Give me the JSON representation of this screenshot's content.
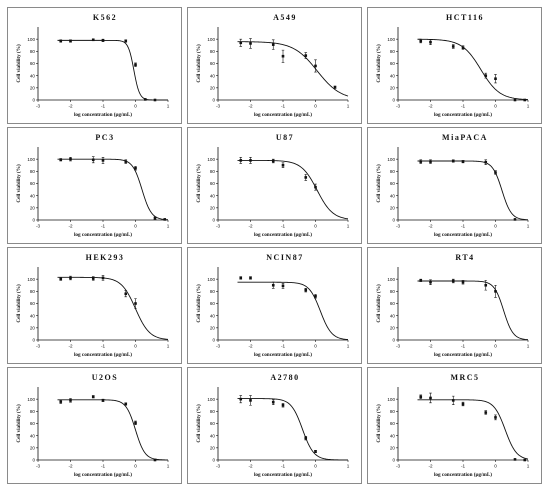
{
  "chart_data": [
    {
      "type": "scatter",
      "title": "K562",
      "xlabel": "log concentration (µg/mL)",
      "ylabel": "Cell viability (%)",
      "xlim": [
        -3,
        1
      ],
      "ylim": [
        0,
        120
      ],
      "xticks": [
        "-3",
        "-2",
        "-1",
        "0",
        "1"
      ],
      "yticks": [
        "0",
        "20",
        "40",
        "60",
        "80",
        "100"
      ],
      "fit": {
        "top": 98,
        "bottom": 0,
        "logIC50": -0.05,
        "hill": -5
      },
      "points": [
        {
          "x": -2.3,
          "y": 97,
          "err": 2
        },
        {
          "x": -2.0,
          "y": 97,
          "err": 2
        },
        {
          "x": -1.3,
          "y": 99,
          "err": 1
        },
        {
          "x": -1.0,
          "y": 98,
          "err": 2
        },
        {
          "x": -0.3,
          "y": 97,
          "err": 2
        },
        {
          "x": 0.0,
          "y": 58,
          "err": 3
        },
        {
          "x": 0.3,
          "y": 1,
          "err": 1
        },
        {
          "x": 0.6,
          "y": 0,
          "err": 0
        }
      ]
    },
    {
      "type": "scatter",
      "title": "A549",
      "xlabel": "log concentration (µg/mL)",
      "ylabel": "Cell viability (%)",
      "xlim": [
        -3,
        1
      ],
      "ylim": [
        0,
        120
      ],
      "xticks": [
        "-3",
        "-2",
        "-1",
        "0",
        "1"
      ],
      "yticks": [
        "0",
        "20",
        "40",
        "60",
        "80",
        "100"
      ],
      "fit": {
        "top": 96,
        "bottom": 0,
        "logIC50": 0.05,
        "hill": -1.2
      },
      "points": [
        {
          "x": -2.3,
          "y": 94,
          "err": 6
        },
        {
          "x": -2.0,
          "y": 93,
          "err": 8
        },
        {
          "x": -1.3,
          "y": 91,
          "err": 8
        },
        {
          "x": -1.0,
          "y": 72,
          "err": 10
        },
        {
          "x": -0.3,
          "y": 73,
          "err": 5
        },
        {
          "x": 0.0,
          "y": 56,
          "err": 10
        },
        {
          "x": 0.6,
          "y": 21,
          "err": 2
        }
      ]
    },
    {
      "type": "scatter",
      "title": "HCT116",
      "xlabel": "log concentration (µg/mL)",
      "ylabel": "Cell viability (%)",
      "xlim": [
        -3,
        1
      ],
      "ylim": [
        0,
        120
      ],
      "xticks": [
        "-3",
        "-2",
        "-1",
        "0",
        "1"
      ],
      "yticks": [
        "0",
        "20",
        "40",
        "60",
        "80",
        "100"
      ],
      "fit": {
        "top": 100,
        "bottom": 0,
        "logIC50": -0.45,
        "hill": -1.5
      },
      "points": [
        {
          "x": -2.3,
          "y": 97,
          "err": 3
        },
        {
          "x": -2.0,
          "y": 95,
          "err": 4
        },
        {
          "x": -1.3,
          "y": 88,
          "err": 3
        },
        {
          "x": -1.0,
          "y": 86,
          "err": 3
        },
        {
          "x": -0.3,
          "y": 40,
          "err": 4
        },
        {
          "x": 0.0,
          "y": 35,
          "err": 7
        },
        {
          "x": 0.6,
          "y": 0,
          "err": 0
        },
        {
          "x": 0.9,
          "y": 0,
          "err": 0
        }
      ]
    },
    {
      "type": "scatter",
      "title": "PC3",
      "xlabel": "log concentration (µg/mL)",
      "ylabel": "Cell viability (%)",
      "xlim": [
        -3,
        1
      ],
      "ylim": [
        0,
        120
      ],
      "xticks": [
        "-3",
        "-2",
        "-1",
        "0",
        "1"
      ],
      "yticks": [
        "0",
        "20",
        "40",
        "60",
        "80",
        "100"
      ],
      "fit": {
        "top": 100,
        "bottom": 0,
        "logIC50": 0.2,
        "hill": -3
      },
      "points": [
        {
          "x": -2.3,
          "y": 99,
          "err": 2
        },
        {
          "x": -2.0,
          "y": 100,
          "err": 3
        },
        {
          "x": -1.3,
          "y": 99,
          "err": 5
        },
        {
          "x": -1.0,
          "y": 98,
          "err": 5
        },
        {
          "x": -0.3,
          "y": 96,
          "err": 3
        },
        {
          "x": 0.0,
          "y": 85,
          "err": 3
        },
        {
          "x": 0.6,
          "y": 3,
          "err": 2
        },
        {
          "x": 0.9,
          "y": 1,
          "err": 0
        }
      ]
    },
    {
      "type": "scatter",
      "title": "U87",
      "xlabel": "log concentration (µg/mL)",
      "ylabel": "Cell viability (%)",
      "xlim": [
        -3,
        1
      ],
      "ylim": [
        0,
        120
      ],
      "xticks": [
        "-3",
        "-2",
        "-1",
        "0",
        "1"
      ],
      "yticks": [
        "0",
        "20",
        "40",
        "60",
        "80",
        "100"
      ],
      "fit": {
        "top": 98,
        "bottom": 0,
        "logIC50": 0.05,
        "hill": -1.8
      },
      "points": [
        {
          "x": -2.3,
          "y": 98,
          "err": 5
        },
        {
          "x": -2.0,
          "y": 98,
          "err": 5
        },
        {
          "x": -1.3,
          "y": 97,
          "err": 3
        },
        {
          "x": -1.0,
          "y": 90,
          "err": 4
        },
        {
          "x": -0.3,
          "y": 70,
          "err": 5
        },
        {
          "x": 0.0,
          "y": 54,
          "err": 5
        }
      ]
    },
    {
      "type": "scatter",
      "title": "MiaPACA",
      "xlabel": "log concentration (µg/mL)",
      "ylabel": "Cell viability (%)",
      "xlim": [
        -3,
        1
      ],
      "ylim": [
        0,
        120
      ],
      "xticks": [
        "-3",
        "-2",
        "-1",
        "0",
        "1"
      ],
      "yticks": [
        "0",
        "20",
        "40",
        "60",
        "80",
        "100"
      ],
      "fit": {
        "top": 97,
        "bottom": 0,
        "logIC50": 0.2,
        "hill": -3
      },
      "points": [
        {
          "x": -2.3,
          "y": 96,
          "err": 3
        },
        {
          "x": -2.0,
          "y": 96,
          "err": 3
        },
        {
          "x": -1.3,
          "y": 97,
          "err": 2
        },
        {
          "x": -1.0,
          "y": 96,
          "err": 2
        },
        {
          "x": -0.3,
          "y": 95,
          "err": 4
        },
        {
          "x": 0.0,
          "y": 78,
          "err": 3
        },
        {
          "x": 0.6,
          "y": 1,
          "err": 0
        }
      ]
    },
    {
      "type": "scatter",
      "title": "HEK293",
      "xlabel": "log concentration (µg/mL)",
      "ylabel": "Cell viability (%)",
      "xlim": [
        -3,
        1
      ],
      "ylim": [
        0,
        120
      ],
      "xticks": [
        "-3",
        "-2",
        "-1",
        "0",
        "1"
      ],
      "yticks": [
        "0",
        "20",
        "40",
        "60",
        "80",
        "100"
      ],
      "fit": {
        "top": 103,
        "bottom": 0,
        "logIC50": 0.0,
        "hill": -2
      },
      "points": [
        {
          "x": -2.3,
          "y": 100,
          "err": 2
        },
        {
          "x": -2.0,
          "y": 102,
          "err": 3
        },
        {
          "x": -1.3,
          "y": 101,
          "err": 3
        },
        {
          "x": -1.0,
          "y": 102,
          "err": 4
        },
        {
          "x": -0.3,
          "y": 76,
          "err": 5
        },
        {
          "x": 0.0,
          "y": 60,
          "err": 8
        }
      ]
    },
    {
      "type": "scatter",
      "title": "NCIN87",
      "xlabel": "log concentration (µg/mL)",
      "ylabel": "Cell viability (%)",
      "xlim": [
        -3,
        1
      ],
      "ylim": [
        0,
        120
      ],
      "xticks": [
        "-3",
        "-2",
        "-1",
        "0",
        "1"
      ],
      "yticks": [
        "0",
        "20",
        "40",
        "60",
        "80",
        "100"
      ],
      "fit": {
        "top": 95,
        "bottom": 0,
        "logIC50": 0.15,
        "hill": -2.5
      },
      "points": [
        {
          "x": -2.3,
          "y": 102,
          "err": 2
        },
        {
          "x": -2.0,
          "y": 102,
          "err": 2
        },
        {
          "x": -1.3,
          "y": 90,
          "err": 5
        },
        {
          "x": -1.0,
          "y": 89,
          "err": 4
        },
        {
          "x": -0.3,
          "y": 82,
          "err": 3
        },
        {
          "x": 0.0,
          "y": 72,
          "err": 3
        }
      ]
    },
    {
      "type": "scatter",
      "title": "RT4",
      "xlabel": "log concentration (µg/mL)",
      "ylabel": "Cell viability (%)",
      "xlim": [
        -3,
        1
      ],
      "ylim": [
        0,
        120
      ],
      "xticks": [
        "-3",
        "-2",
        "-1",
        "0",
        "1"
      ],
      "yticks": [
        "0",
        "20",
        "40",
        "60",
        "80",
        "100"
      ],
      "fit": {
        "top": 97,
        "bottom": 0,
        "logIC50": 0.25,
        "hill": -3
      },
      "points": [
        {
          "x": -2.3,
          "y": 98,
          "err": 2
        },
        {
          "x": -2.0,
          "y": 95,
          "err": 4
        },
        {
          "x": -1.3,
          "y": 97,
          "err": 3
        },
        {
          "x": -1.0,
          "y": 95,
          "err": 3
        },
        {
          "x": -0.3,
          "y": 90,
          "err": 8
        },
        {
          "x": 0.0,
          "y": 80,
          "err": 10
        }
      ]
    },
    {
      "type": "scatter",
      "title": "U2OS",
      "xlabel": "log concentration (µg/mL)",
      "ylabel": "Cell viability (%)",
      "xlim": [
        -3,
        1
      ],
      "ylim": [
        0,
        120
      ],
      "xticks": [
        "-3",
        "-2",
        "-1",
        "0",
        "1"
      ],
      "yticks": [
        "0",
        "20",
        "40",
        "60",
        "80",
        "100"
      ],
      "fit": {
        "top": 99,
        "bottom": 0,
        "logIC50": 0.0,
        "hill": -3
      },
      "points": [
        {
          "x": -2.3,
          "y": 96,
          "err": 3
        },
        {
          "x": -2.0,
          "y": 98,
          "err": 3
        },
        {
          "x": -1.3,
          "y": 104,
          "err": 2
        },
        {
          "x": -1.0,
          "y": 98,
          "err": 2
        },
        {
          "x": -0.3,
          "y": 92,
          "err": 2
        },
        {
          "x": 0.0,
          "y": 61,
          "err": 3
        },
        {
          "x": 0.6,
          "y": 0,
          "err": 0
        }
      ]
    },
    {
      "type": "scatter",
      "title": "A2780",
      "xlabel": "log concentration (µg/mL)",
      "ylabel": "Cell viability (%)",
      "xlim": [
        -3,
        1
      ],
      "ylim": [
        0,
        120
      ],
      "xticks": [
        "-3",
        "-2",
        "-1",
        "0",
        "1"
      ],
      "yticks": [
        "0",
        "20",
        "40",
        "60",
        "80",
        "100"
      ],
      "fit": {
        "top": 101,
        "bottom": 0,
        "logIC50": -0.4,
        "hill": -2.5
      },
      "points": [
        {
          "x": -2.3,
          "y": 100,
          "err": 6
        },
        {
          "x": -2.0,
          "y": 98,
          "err": 8
        },
        {
          "x": -1.3,
          "y": 95,
          "err": 4
        },
        {
          "x": -1.0,
          "y": 90,
          "err": 3
        },
        {
          "x": -0.3,
          "y": 36,
          "err": 3
        },
        {
          "x": 0.0,
          "y": 14,
          "err": 2
        }
      ]
    },
    {
      "type": "scatter",
      "title": "MRC5",
      "xlabel": "log concentration (µg/mL)",
      "ylabel": "Cell viability (%)",
      "xlim": [
        -3,
        1
      ],
      "ylim": [
        0,
        120
      ],
      "xticks": [
        "-3",
        "-2",
        "-1",
        "0",
        "1"
      ],
      "yticks": [
        "0",
        "20",
        "40",
        "60",
        "80",
        "100"
      ],
      "fit": {
        "top": 99,
        "bottom": 0,
        "logIC50": 0.3,
        "hill": -2.5
      },
      "points": [
        {
          "x": -2.3,
          "y": 104,
          "err": 3
        },
        {
          "x": -2.0,
          "y": 102,
          "err": 8
        },
        {
          "x": -1.3,
          "y": 98,
          "err": 7
        },
        {
          "x": -1.0,
          "y": 92,
          "err": 3
        },
        {
          "x": -0.3,
          "y": 78,
          "err": 3
        },
        {
          "x": 0.0,
          "y": 70,
          "err": 4
        },
        {
          "x": 0.6,
          "y": 1,
          "err": 0
        },
        {
          "x": 0.9,
          "y": 0,
          "err": 0
        }
      ]
    }
  ],
  "colors": {
    "ink": "#111111",
    "frame": "#8a8a8a",
    "background": "#ffffff"
  }
}
